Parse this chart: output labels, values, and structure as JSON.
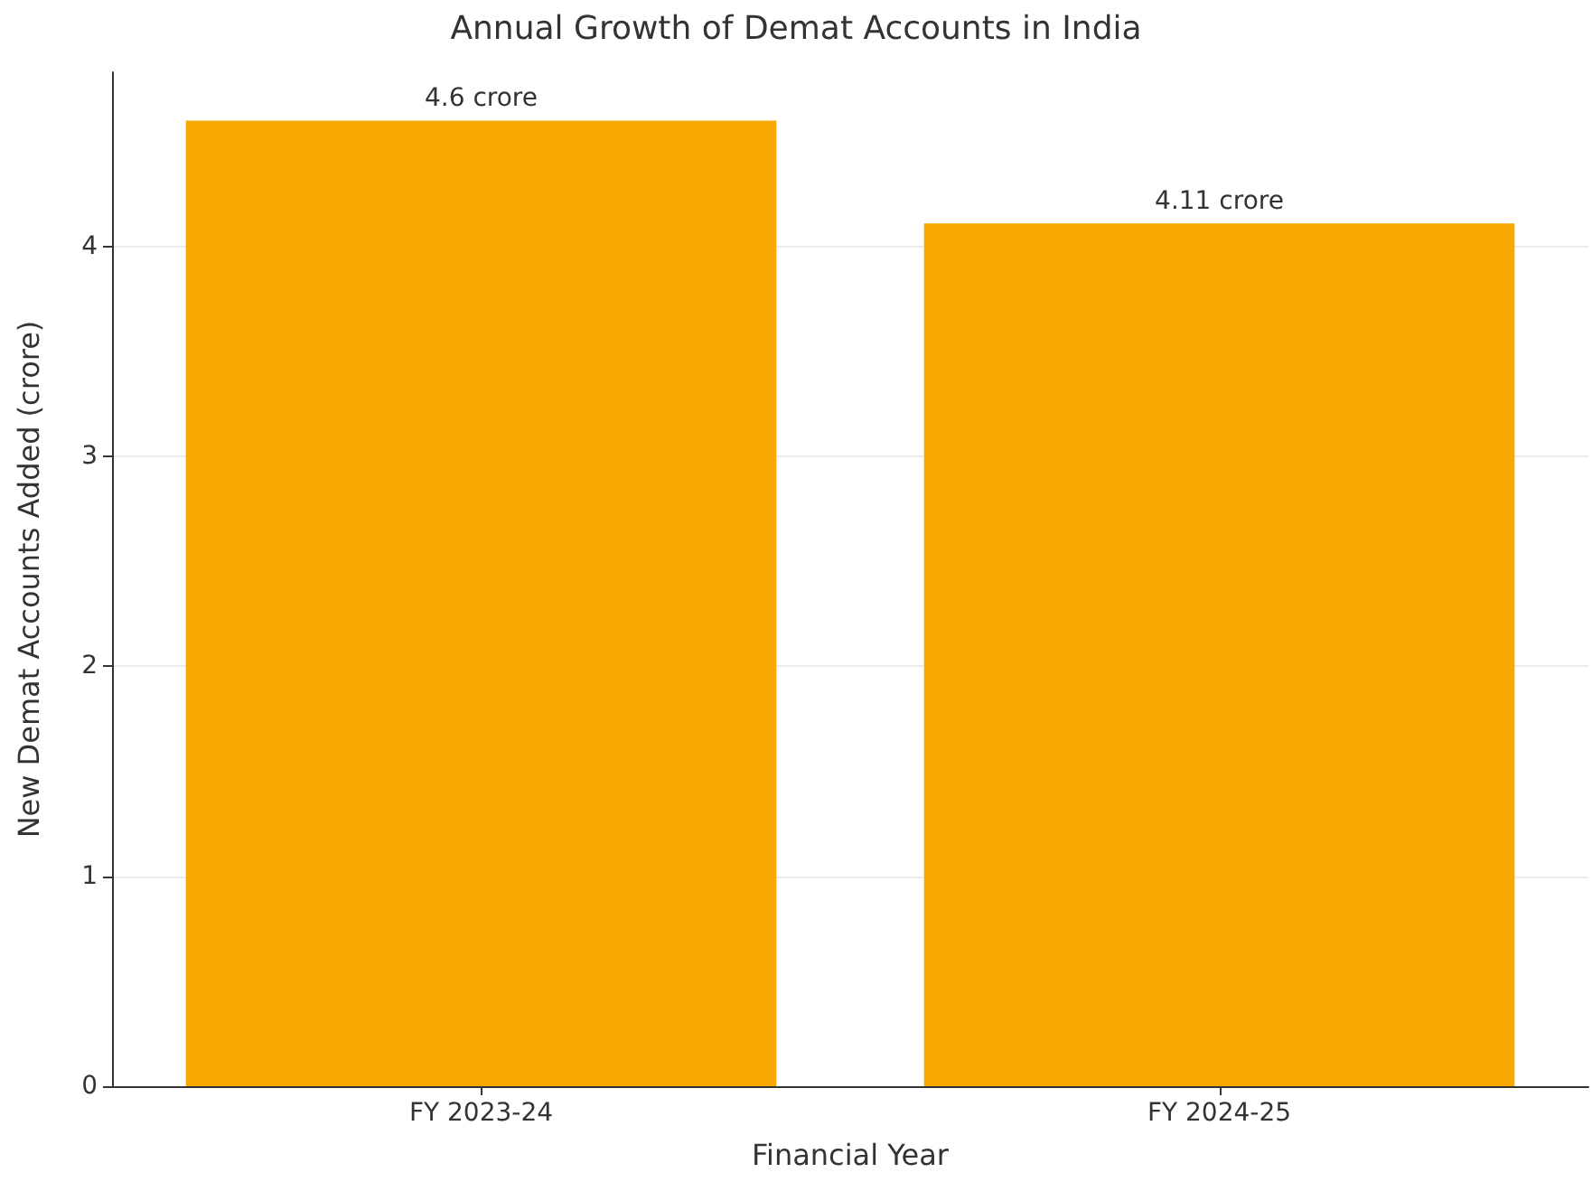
{
  "chart_data": {
    "type": "bar",
    "title": "Annual Growth of Demat Accounts in India",
    "xlabel": "Financial Year",
    "ylabel": "New Demat Accounts Added (crore)",
    "categories": [
      "FY 2023-24",
      "FY 2024-25"
    ],
    "values": [
      4.6,
      4.11
    ],
    "value_labels": [
      "4.6 crore",
      "4.11 crore"
    ],
    "color": "#f7a800",
    "ylim": [
      0,
      4.83
    ],
    "yticks": [
      0,
      1,
      2,
      3,
      4
    ],
    "grid": "y"
  }
}
